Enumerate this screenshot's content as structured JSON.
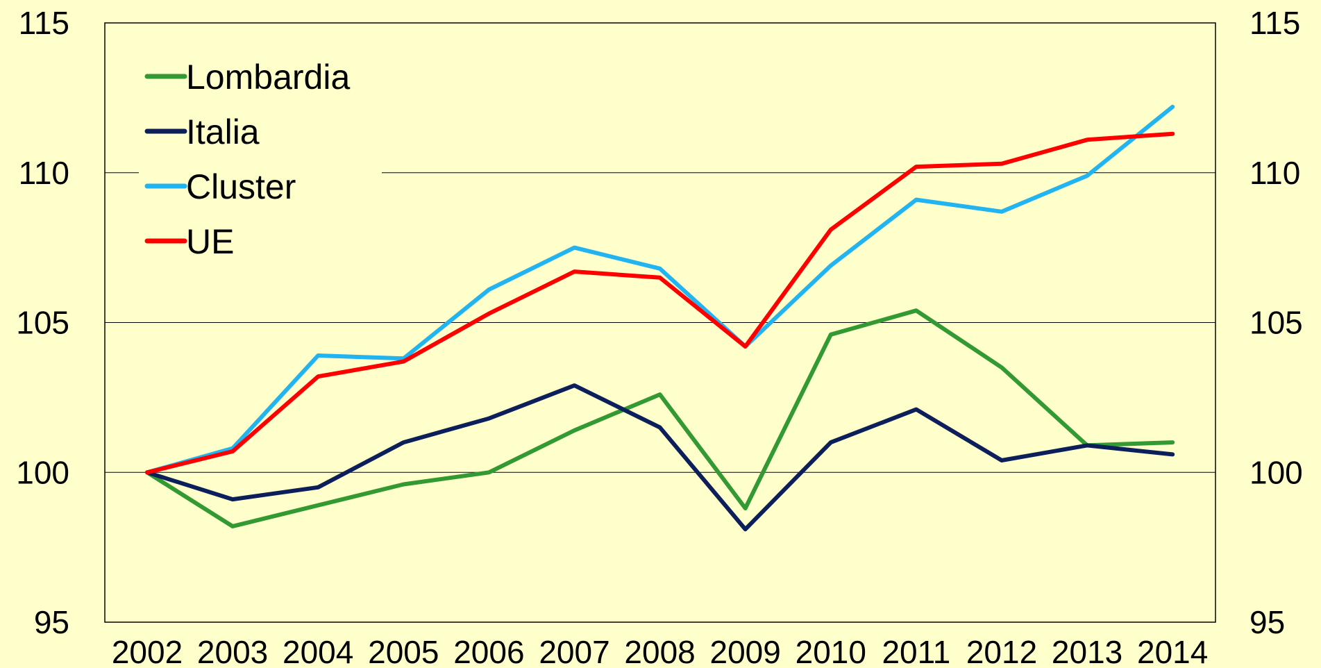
{
  "chart_data": {
    "type": "line",
    "title": "",
    "xlabel": "",
    "ylabel": "",
    "categories": [
      "2002",
      "2003",
      "2004",
      "2005",
      "2006",
      "2007",
      "2008",
      "2009",
      "2010",
      "2011",
      "2012",
      "2013",
      "2014"
    ],
    "ylim": [
      95,
      115
    ],
    "yticks": [
      95,
      100,
      105,
      110,
      115
    ],
    "ytick_labels": [
      "95",
      "100",
      "105",
      "110",
      "115"
    ],
    "secondary_axis": "right, same scale",
    "grid": "horizontal",
    "legend_position": "top-left",
    "series": [
      {
        "name": "Lombardia",
        "color": "#339933",
        "values": [
          100,
          98.2,
          98.9,
          99.6,
          100.0,
          101.4,
          102.6,
          98.8,
          104.6,
          105.4,
          103.5,
          100.9,
          101.0
        ]
      },
      {
        "name": "Italia",
        "color": "#0d1f5a",
        "values": [
          100,
          99.1,
          99.5,
          101.0,
          101.8,
          102.9,
          101.5,
          98.1,
          101.0,
          102.1,
          100.4,
          100.9,
          100.6
        ]
      },
      {
        "name": "Cluster",
        "color": "#22b4f0",
        "values": [
          100,
          100.8,
          103.9,
          103.8,
          106.1,
          107.5,
          106.8,
          104.2,
          106.9,
          109.1,
          108.7,
          109.9,
          112.2
        ]
      },
      {
        "name": "UE",
        "color": "#ff0000",
        "values": [
          100,
          100.7,
          103.2,
          103.7,
          105.3,
          106.7,
          106.5,
          104.2,
          108.1,
          110.2,
          110.3,
          111.1,
          111.3
        ]
      }
    ]
  }
}
